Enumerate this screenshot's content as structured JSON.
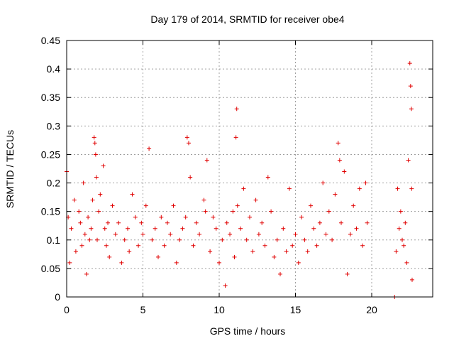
{
  "chart_data": {
    "type": "scatter",
    "title": "Day 179 of 2014, SRMTID for receiver obe4",
    "xlabel": "GPS time / hours",
    "ylabel": "SRMTID / TECUs",
    "xlim": [
      0,
      24
    ],
    "ylim": [
      0,
      0.45
    ],
    "xticks": [
      0,
      5,
      10,
      15,
      20
    ],
    "yticks": [
      0,
      0.05,
      0.1,
      0.15,
      0.2,
      0.25,
      0.3,
      0.35,
      0.4,
      0.45
    ],
    "grid": true,
    "marker": "plus",
    "color": "#e00000",
    "series": [
      {
        "name": "obe4",
        "x": [
          0.0,
          0.1,
          0.2,
          0.3,
          0.5,
          0.6,
          0.8,
          0.9,
          1.0,
          1.1,
          1.2,
          1.3,
          1.4,
          1.5,
          1.6,
          1.7,
          1.8,
          1.85,
          1.9,
          1.95,
          2.0,
          2.1,
          2.2,
          2.4,
          2.5,
          2.6,
          2.7,
          2.8,
          3.0,
          3.2,
          3.4,
          3.6,
          3.8,
          4.0,
          4.1,
          4.3,
          4.5,
          4.7,
          4.9,
          5.0,
          5.2,
          5.4,
          5.6,
          5.8,
          6.0,
          6.2,
          6.4,
          6.6,
          6.8,
          7.0,
          7.2,
          7.4,
          7.6,
          7.8,
          7.9,
          8.0,
          8.1,
          8.3,
          8.5,
          8.7,
          9.0,
          9.1,
          9.2,
          9.4,
          9.6,
          9.8,
          10.0,
          10.2,
          10.4,
          10.5,
          10.7,
          10.9,
          11.0,
          11.1,
          11.15,
          11.2,
          11.4,
          11.6,
          11.8,
          12.0,
          12.2,
          12.4,
          12.6,
          12.8,
          13.0,
          13.2,
          13.4,
          13.6,
          13.8,
          14.0,
          14.2,
          14.4,
          14.6,
          14.8,
          15.0,
          15.2,
          15.4,
          15.6,
          15.8,
          16.0,
          16.2,
          16.4,
          16.6,
          16.8,
          17.0,
          17.2,
          17.4,
          17.6,
          17.8,
          17.9,
          18.0,
          18.2,
          18.4,
          18.6,
          18.8,
          19.0,
          19.2,
          19.4,
          19.6,
          19.7,
          21.5,
          21.6,
          21.7,
          21.8,
          21.9,
          22.0,
          22.1,
          22.2,
          22.3,
          22.4,
          22.5,
          22.55,
          22.6,
          22.62,
          22.65
        ],
        "y": [
          0.22,
          0.14,
          0.06,
          0.12,
          0.17,
          0.08,
          0.15,
          0.13,
          0.09,
          0.2,
          0.11,
          0.04,
          0.14,
          0.1,
          0.12,
          0.17,
          0.28,
          0.27,
          0.25,
          0.21,
          0.1,
          0.15,
          0.18,
          0.23,
          0.12,
          0.09,
          0.13,
          0.07,
          0.16,
          0.11,
          0.13,
          0.06,
          0.1,
          0.12,
          0.08,
          0.18,
          0.14,
          0.09,
          0.13,
          0.11,
          0.16,
          0.26,
          0.1,
          0.12,
          0.07,
          0.14,
          0.09,
          0.13,
          0.11,
          0.16,
          0.06,
          0.1,
          0.12,
          0.14,
          0.28,
          0.27,
          0.21,
          0.09,
          0.13,
          0.11,
          0.17,
          0.15,
          0.24,
          0.08,
          0.14,
          0.12,
          0.06,
          0.1,
          0.02,
          0.13,
          0.11,
          0.15,
          0.07,
          0.28,
          0.33,
          0.16,
          0.12,
          0.19,
          0.1,
          0.14,
          0.08,
          0.17,
          0.11,
          0.13,
          0.09,
          0.21,
          0.15,
          0.07,
          0.1,
          0.04,
          0.12,
          0.08,
          0.19,
          0.09,
          0.11,
          0.06,
          0.14,
          0.1,
          0.08,
          0.16,
          0.12,
          0.09,
          0.13,
          0.2,
          0.11,
          0.15,
          0.1,
          0.18,
          0.27,
          0.24,
          0.13,
          0.22,
          0.04,
          0.11,
          0.16,
          0.12,
          0.19,
          0.09,
          0.2,
          0.13,
          0.0,
          0.08,
          0.19,
          0.12,
          0.15,
          0.1,
          0.09,
          0.13,
          0.06,
          0.24,
          0.41,
          0.37,
          0.33,
          0.19,
          0.03
        ]
      }
    ]
  }
}
